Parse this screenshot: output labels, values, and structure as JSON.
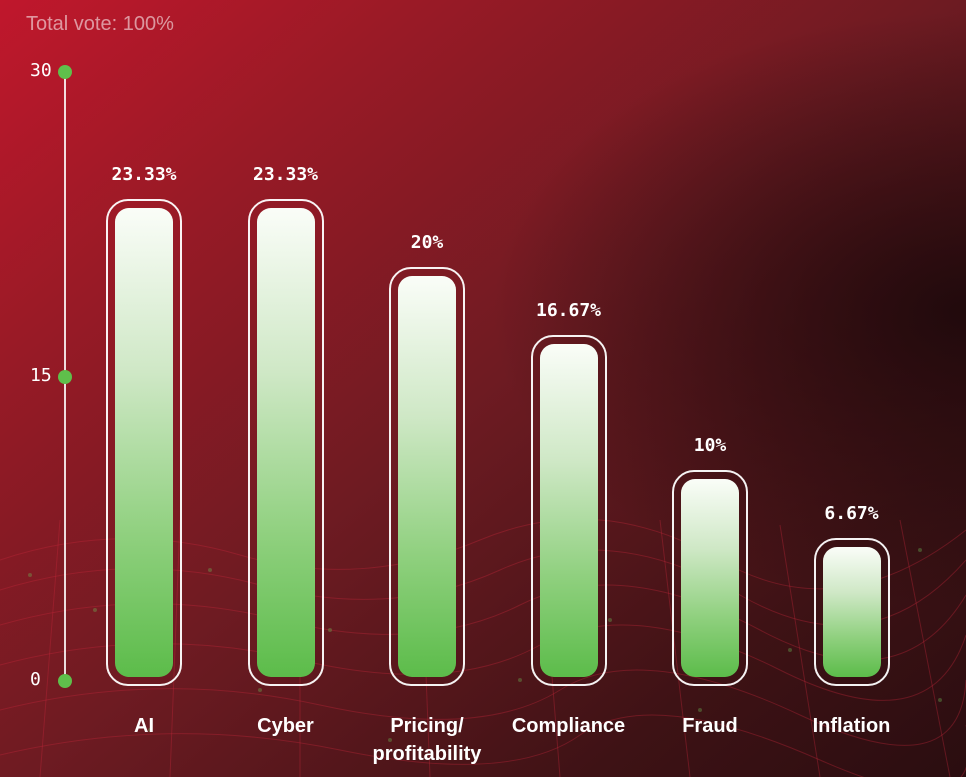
{
  "header": {
    "total_vote": "Total vote: 100%"
  },
  "chart_data": {
    "type": "bar",
    "categories": [
      "AI",
      "Cyber",
      "Pricing/ profitability",
      "Compliance",
      "Fraud",
      "Inflation"
    ],
    "values": [
      23.33,
      23.33,
      20,
      16.67,
      10,
      6.67
    ],
    "value_labels": [
      "23.33%",
      "23.33%",
      "20%",
      "16.67%",
      "10%",
      "6.67%"
    ],
    "ylim": [
      0,
      30
    ],
    "yticks": [
      0,
      15,
      30
    ],
    "ytick_labels": [
      "0",
      "15",
      "30"
    ],
    "grid": false,
    "colors": {
      "bar_fill_top": "#fafdf8",
      "bar_fill_bottom": "#5cbc4a",
      "tick_dot": "#5fbf4b",
      "frame": "#ffffff"
    }
  }
}
